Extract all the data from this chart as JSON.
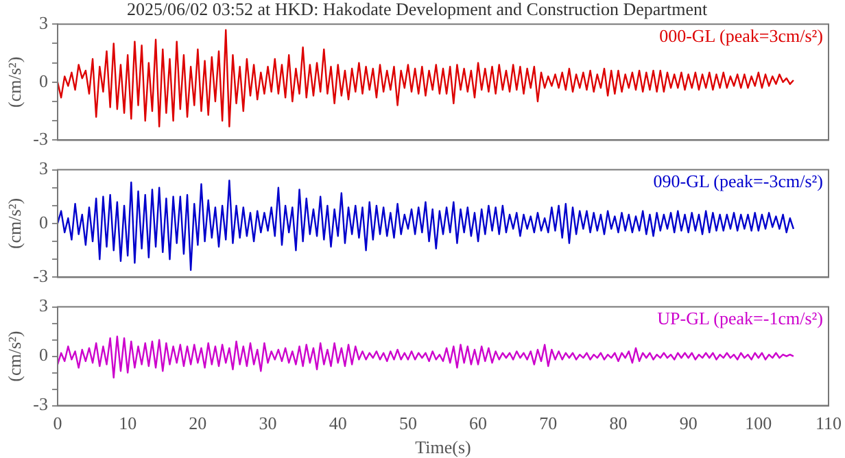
{
  "chart_data": [
    {
      "type": "line",
      "title": "2025/06/02 03:52 at HKD: Hakodate Development and Construction Department",
      "ylabel": "(cm/s²)",
      "marker": "none",
      "tick_labels": "y",
      "legend": false,
      "x": [
        0,
        0.5,
        1,
        1.5,
        2,
        2.5,
        3,
        3.5,
        4,
        4.5,
        5,
        5.5,
        6,
        6.5,
        7,
        7.5,
        8,
        8.5,
        9,
        9.5,
        10,
        10.5,
        11,
        11.5,
        12,
        12.5,
        13,
        13.5,
        14,
        14.5,
        15,
        15.5,
        16,
        16.5,
        17,
        17.5,
        18,
        18.5,
        19,
        19.5,
        20,
        20.5,
        21,
        21.5,
        22,
        22.5,
        23,
        23.5,
        24,
        24.5,
        25,
        25.5,
        26,
        26.5,
        27,
        27.5,
        28,
        28.5,
        29,
        29.5,
        30,
        30.5,
        31,
        31.5,
        32,
        32.5,
        33,
        33.5,
        34,
        34.5,
        35,
        35.5,
        36,
        36.5,
        37,
        37.5,
        38,
        38.5,
        39,
        39.5,
        40,
        40.5,
        41,
        41.5,
        42,
        42.5,
        43,
        43.5,
        44,
        44.5,
        45,
        45.5,
        46,
        46.5,
        47,
        47.5,
        48,
        48.5,
        49,
        49.5,
        50,
        50.5,
        51,
        51.5,
        52,
        52.5,
        53,
        53.5,
        54,
        54.5,
        55,
        55.5,
        56,
        56.5,
        57,
        57.5,
        58,
        58.5,
        59,
        59.5,
        60,
        60.5,
        61,
        61.5,
        62,
        62.5,
        63,
        63.5,
        64,
        64.5,
        65,
        65.5,
        66,
        66.5,
        67,
        67.5,
        68,
        68.5,
        69,
        69.5,
        70,
        70.5,
        71,
        71.5,
        72,
        72.5,
        73,
        73.5,
        74,
        74.5,
        75,
        75.5,
        76,
        76.5,
        77,
        77.5,
        78,
        78.5,
        79,
        79.5,
        80,
        80.5,
        81,
        81.5,
        82,
        82.5,
        83,
        83.5,
        84,
        84.5,
        85,
        85.5,
        86,
        86.5,
        87,
        87.5,
        88,
        88.5,
        89,
        89.5,
        90,
        90.5,
        91,
        91.5,
        92,
        92.5,
        93,
        93.5,
        94,
        94.5,
        95,
        95.5,
        96,
        96.5,
        97,
        97.5,
        98,
        98.5,
        99,
        99.5,
        100,
        100.5,
        101,
        101.5,
        102,
        102.5,
        103,
        103.5,
        104,
        104.5,
        105
      ],
      "xlim": [
        0,
        110
      ],
      "xticks": [
        0,
        10,
        20,
        30,
        40,
        50,
        60,
        70,
        80,
        90,
        100,
        110
      ],
      "ylim": [
        -3,
        3
      ],
      "yticks": [
        -3,
        {
          "value": -2,
          "label": null
        },
        {
          "value": -1,
          "label": null
        },
        0,
        {
          "value": 1,
          "label": null
        },
        {
          "value": 2,
          "label": null
        },
        3
      ],
      "series": [
        {
          "name": "000-GL (peak=3cm/s²)",
          "color": "#dd0000",
          "values": [
            0,
            -0.8,
            0.3,
            -0.2,
            0.5,
            -0.4,
            0.9,
            0.2,
            0.6,
            -0.6,
            1.2,
            -1.8,
            0.8,
            -0.5,
            1.6,
            -1.3,
            2.0,
            -1.4,
            0.9,
            -1.6,
            1.4,
            -1.9,
            2.1,
            -1.2,
            1.9,
            -2.0,
            1.0,
            -1.5,
            2.2,
            -2.3,
            1.7,
            -1.6,
            1.2,
            -2.0,
            2.1,
            -1.4,
            1.4,
            -1.8,
            0.8,
            -1.2,
            1.7,
            -1.5,
            1.1,
            -1.7,
            1.3,
            -1.0,
            1.6,
            -2.0,
            2.7,
            -2.3,
            1.4,
            -1.1,
            0.8,
            -1.5,
            1.2,
            -0.7,
            0.9,
            -0.9,
            0.5,
            -0.6,
            0.8,
            -0.5,
            1.2,
            -0.6,
            0.9,
            -0.8,
            1.4,
            -1.0,
            0.7,
            -0.6,
            1.8,
            -0.8,
            0.9,
            -0.7,
            1.0,
            -0.5,
            1.7,
            -0.6,
            0.8,
            -1.1,
            0.9,
            -0.7,
            0.6,
            -0.9,
            0.7,
            -0.5,
            1.0,
            -0.6,
            0.8,
            -0.4,
            0.7,
            -0.8,
            0.9,
            -0.5,
            0.6,
            -0.4,
            0.8,
            -1.2,
            0.6,
            -0.3,
            0.9,
            -0.5,
            0.7,
            -0.6,
            0.8,
            -0.7,
            0.6,
            -0.4,
            0.9,
            -0.6,
            0.7,
            -0.6,
            0.8,
            -1.1,
            0.9,
            -0.4,
            0.7,
            -0.5,
            0.6,
            -0.8,
            1.0,
            -0.4,
            0.7,
            -0.5,
            0.8,
            -0.6,
            0.9,
            -0.4,
            0.6,
            -0.5,
            0.9,
            -0.4,
            0.8,
            -0.6,
            0.7,
            -0.3,
            0.8,
            -1.0,
            0.5,
            -0.3,
            0.3,
            -0.2,
            0.4,
            -0.3,
            0.5,
            -0.4,
            0.7,
            -0.5,
            0.4,
            -0.3,
            0.5,
            -0.4,
            0.6,
            -0.5,
            0.4,
            -0.3,
            0.7,
            -0.7,
            0.6,
            -0.6,
            0.6,
            -0.5,
            0.4,
            -0.3,
            0.5,
            -0.4,
            0.6,
            -0.5,
            0.5,
            -0.4,
            0.6,
            -0.5,
            0.6,
            -0.5,
            0.5,
            -0.3,
            0.4,
            -0.3,
            0.5,
            -0.4,
            0.4,
            -0.3,
            0.5,
            -0.4,
            0.4,
            -0.3,
            0.5,
            -0.4,
            0.4,
            -0.3,
            0.5,
            -0.3,
            0.3,
            -0.2,
            0.4,
            -0.3,
            0.4,
            -0.3,
            0.3,
            -0.2,
            0.5,
            -0.3,
            0.4,
            -0.2,
            0.3,
            -0.1,
            0.4,
            0,
            0.2,
            -0.1,
            0.1
          ]
        }
      ]
    },
    {
      "type": "line",
      "ylabel": "(cm/s²)",
      "marker": "none",
      "tick_labels": "y",
      "legend": false,
      "x": [
        0,
        0.5,
        1,
        1.5,
        2,
        2.5,
        3,
        3.5,
        4,
        4.5,
        5,
        5.5,
        6,
        6.5,
        7,
        7.5,
        8,
        8.5,
        9,
        9.5,
        10,
        10.5,
        11,
        11.5,
        12,
        12.5,
        13,
        13.5,
        14,
        14.5,
        15,
        15.5,
        16,
        16.5,
        17,
        17.5,
        18,
        18.5,
        19,
        19.5,
        20,
        20.5,
        21,
        21.5,
        22,
        22.5,
        23,
        23.5,
        24,
        24.5,
        25,
        25.5,
        26,
        26.5,
        27,
        27.5,
        28,
        28.5,
        29,
        29.5,
        30,
        30.5,
        31,
        31.5,
        32,
        32.5,
        33,
        33.5,
        34,
        34.5,
        35,
        35.5,
        36,
        36.5,
        37,
        37.5,
        38,
        38.5,
        39,
        39.5,
        40,
        40.5,
        41,
        41.5,
        42,
        42.5,
        43,
        43.5,
        44,
        44.5,
        45,
        45.5,
        46,
        46.5,
        47,
        47.5,
        48,
        48.5,
        49,
        49.5,
        50,
        50.5,
        51,
        51.5,
        52,
        52.5,
        53,
        53.5,
        54,
        54.5,
        55,
        55.5,
        56,
        56.5,
        57,
        57.5,
        58,
        58.5,
        59,
        59.5,
        60,
        60.5,
        61,
        61.5,
        62,
        62.5,
        63,
        63.5,
        64,
        64.5,
        65,
        65.5,
        66,
        66.5,
        67,
        67.5,
        68,
        68.5,
        69,
        69.5,
        70,
        70.5,
        71,
        71.5,
        72,
        72.5,
        73,
        73.5,
        74,
        74.5,
        75,
        75.5,
        76,
        76.5,
        77,
        77.5,
        78,
        78.5,
        79,
        79.5,
        80,
        80.5,
        81,
        81.5,
        82,
        82.5,
        83,
        83.5,
        84,
        84.5,
        85,
        85.5,
        86,
        86.5,
        87,
        87.5,
        88,
        88.5,
        89,
        89.5,
        90,
        90.5,
        91,
        91.5,
        92,
        92.5,
        93,
        93.5,
        94,
        94.5,
        95,
        95.5,
        96,
        96.5,
        97,
        97.5,
        98,
        98.5,
        99,
        99.5,
        100,
        100.5,
        101,
        101.5,
        102,
        102.5,
        103,
        103.5,
        104,
        104.5,
        105
      ],
      "xlim": [
        0,
        110
      ],
      "xticks": [
        0,
        10,
        20,
        30,
        40,
        50,
        60,
        70,
        80,
        90,
        100,
        110
      ],
      "ylim": [
        -3,
        3
      ],
      "yticks": [
        -3,
        {
          "value": -2,
          "label": null
        },
        {
          "value": -1,
          "label": null
        },
        0,
        {
          "value": 1,
          "label": null
        },
        {
          "value": 2,
          "label": null
        },
        3
      ],
      "series": [
        {
          "name": "090-GL (peak=-3cm/s²)",
          "color": "#0000cc",
          "values": [
            0,
            0.7,
            -0.5,
            0.3,
            -0.9,
            1.1,
            -0.6,
            0.5,
            -1.2,
            0.9,
            -1.0,
            1.4,
            -2.0,
            1.5,
            -1.3,
            1.6,
            -1.5,
            1.2,
            -2.1,
            1.0,
            -1.8,
            2.3,
            -2.2,
            1.8,
            -1.4,
            1.6,
            -1.9,
            1.9,
            -1.3,
            2.0,
            -1.6,
            1.4,
            -2.0,
            1.5,
            -1.1,
            1.5,
            -1.7,
            1.6,
            -2.6,
            1.1,
            -1.2,
            2.2,
            -1.0,
            1.3,
            -0.8,
            0.9,
            -1.3,
            1.0,
            -0.9,
            2.4,
            -1.1,
            1.0,
            -0.8,
            0.9,
            -0.7,
            0.6,
            -1.0,
            0.7,
            -0.5,
            0.6,
            -0.4,
            0.9,
            -0.7,
            2.0,
            -1.2,
            1.0,
            -0.5,
            0.9,
            -1.5,
            1.9,
            -1.0,
            1.4,
            -0.6,
            0.8,
            -0.7,
            1.5,
            -0.9,
            1.0,
            -1.3,
            0.8,
            -0.7,
            1.7,
            -1.1,
            0.9,
            -0.6,
            1.0,
            -0.8,
            0.9,
            -1.5,
            1.2,
            -0.9,
            1.0,
            -0.6,
            0.9,
            -0.7,
            0.6,
            -0.8,
            1.1,
            -0.6,
            0.5,
            -0.3,
            0.8,
            -0.6,
            0.9,
            -0.5,
            1.2,
            -1.0,
            0.8,
            -1.4,
            0.7,
            -0.6,
            0.9,
            -0.5,
            1.2,
            -1.1,
            0.8,
            -0.5,
            0.9,
            -0.7,
            0.6,
            -1.0,
            0.8,
            -0.6,
            1.0,
            -0.4,
            0.9,
            -0.6,
            1.0,
            -0.5,
            0.5,
            -0.3,
            0.6,
            -0.7,
            0.5,
            -0.3,
            0.4,
            -0.5,
            0.6,
            -0.4,
            0.3,
            -0.5,
            0.9,
            -0.4,
            1.0,
            -0.8,
            1.1,
            -1.1,
            0.9,
            -0.6,
            0.7,
            -0.3,
            0.7,
            -0.5,
            0.6,
            -0.4,
            0.5,
            -0.6,
            0.7,
            -0.3,
            0.4,
            -0.5,
            0.6,
            -0.4,
            0.5,
            -0.5,
            0.4,
            -0.4,
            0.7,
            -0.6,
            0.5,
            -0.7,
            0.6,
            -0.4,
            0.5,
            -0.3,
            0.6,
            -0.5,
            0.7,
            -0.4,
            0.5,
            -0.5,
            0.6,
            -0.4,
            0.5,
            -0.6,
            0.7,
            -0.5,
            0.6,
            -0.4,
            0.5,
            -0.4,
            0.5,
            -0.3,
            0.6,
            -0.4,
            0.5,
            -0.3,
            0.5,
            -0.4,
            0.6,
            -0.4,
            0.5,
            -0.3,
            0.6,
            -0.2,
            0.4,
            -0.3,
            0.5,
            -0.5,
            0.3,
            -0.3
          ]
        }
      ]
    },
    {
      "type": "line",
      "ylabel": "(cm/s²)",
      "xlabel": "Time(s)",
      "marker": "none",
      "legend": false,
      "x": [
        0,
        0.5,
        1,
        1.5,
        2,
        2.5,
        3,
        3.5,
        4,
        4.5,
        5,
        5.5,
        6,
        6.5,
        7,
        7.5,
        8,
        8.5,
        9,
        9.5,
        10,
        10.5,
        11,
        11.5,
        12,
        12.5,
        13,
        13.5,
        14,
        14.5,
        15,
        15.5,
        16,
        16.5,
        17,
        17.5,
        18,
        18.5,
        19,
        19.5,
        20,
        20.5,
        21,
        21.5,
        22,
        22.5,
        23,
        23.5,
        24,
        24.5,
        25,
        25.5,
        26,
        26.5,
        27,
        27.5,
        28,
        28.5,
        29,
        29.5,
        30,
        30.5,
        31,
        31.5,
        32,
        32.5,
        33,
        33.5,
        34,
        34.5,
        35,
        35.5,
        36,
        36.5,
        37,
        37.5,
        38,
        38.5,
        39,
        39.5,
        40,
        40.5,
        41,
        41.5,
        42,
        42.5,
        43,
        43.5,
        44,
        44.5,
        45,
        45.5,
        46,
        46.5,
        47,
        47.5,
        48,
        48.5,
        49,
        49.5,
        50,
        50.5,
        51,
        51.5,
        52,
        52.5,
        53,
        53.5,
        54,
        54.5,
        55,
        55.5,
        56,
        56.5,
        57,
        57.5,
        58,
        58.5,
        59,
        59.5,
        60,
        60.5,
        61,
        61.5,
        62,
        62.5,
        63,
        63.5,
        64,
        64.5,
        65,
        65.5,
        66,
        66.5,
        67,
        67.5,
        68,
        68.5,
        69,
        69.5,
        70,
        70.5,
        71,
        71.5,
        72,
        72.5,
        73,
        73.5,
        74,
        74.5,
        75,
        75.5,
        76,
        76.5,
        77,
        77.5,
        78,
        78.5,
        79,
        79.5,
        80,
        80.5,
        81,
        81.5,
        82,
        82.5,
        83,
        83.5,
        84,
        84.5,
        85,
        85.5,
        86,
        86.5,
        87,
        87.5,
        88,
        88.5,
        89,
        89.5,
        90,
        90.5,
        91,
        91.5,
        92,
        92.5,
        93,
        93.5,
        94,
        94.5,
        95,
        95.5,
        96,
        96.5,
        97,
        97.5,
        98,
        98.5,
        99,
        99.5,
        100,
        100.5,
        101,
        101.5,
        102,
        102.5,
        103,
        103.5,
        104,
        104.5,
        105
      ],
      "xlim": [
        0,
        110
      ],
      "xticks": [
        0,
        10,
        20,
        30,
        40,
        50,
        60,
        70,
        80,
        90,
        100,
        110
      ],
      "ylim": [
        -3,
        3
      ],
      "yticks": [
        -3,
        {
          "value": -2,
          "label": null
        },
        {
          "value": -1,
          "label": null
        },
        0,
        {
          "value": 1,
          "label": null
        },
        {
          "value": 2,
          "label": null
        },
        3
      ],
      "series": [
        {
          "name": "UP-GL (peak=-1cm/s²)",
          "color": "#cc00cc",
          "values": [
            -0.5,
            0.2,
            -0.3,
            0.6,
            -0.2,
            0.3,
            -0.7,
            0.4,
            -0.3,
            0.5,
            -0.4,
            0.8,
            -0.6,
            0.6,
            -0.5,
            1.1,
            -1.3,
            1.2,
            -0.9,
            1.1,
            -1.0,
            0.9,
            -0.7,
            0.6,
            -0.5,
            0.8,
            -0.6,
            0.9,
            -0.7,
            1.0,
            -0.9,
            0.8,
            -0.5,
            0.6,
            -0.4,
            0.7,
            -0.6,
            0.6,
            -0.5,
            0.7,
            -0.4,
            0.5,
            -0.7,
            0.8,
            -0.5,
            0.6,
            -0.6,
            0.7,
            -0.4,
            0.5,
            -0.8,
            0.9,
            -0.5,
            0.6,
            -0.6,
            0.8,
            -0.5,
            0.4,
            -0.9,
            0.8,
            -0.4,
            0.3,
            -0.2,
            0.4,
            -0.3,
            0.5,
            -0.4,
            0.3,
            -0.5,
            0.6,
            -0.6,
            0.7,
            -0.4,
            0.5,
            -0.8,
            0.8,
            -0.5,
            0.4,
            -0.6,
            0.8,
            -0.4,
            0.5,
            -0.6,
            0.7,
            -0.5,
            0.6,
            -0.2,
            0.3,
            -0.2,
            0.2,
            -0.1,
            0.3,
            -0.2,
            0.2,
            -0.3,
            0.3,
            -0.2,
            0.4,
            -0.2,
            0.2,
            -0.2,
            0.3,
            -0.2,
            0.2,
            -0.1,
            0.2,
            -0.3,
            0.3,
            -0.2,
            0.1,
            -0.3,
            0.5,
            -0.4,
            0.6,
            -0.7,
            0.7,
            -0.4,
            0.6,
            -0.5,
            0.4,
            -0.5,
            0.6,
            -0.3,
            0.5,
            -0.4,
            0.3,
            -0.2,
            0.2,
            -0.1,
            0.2,
            -0.2,
            0.3,
            -0.1,
            0.2,
            -0.2,
            0.3,
            -0.5,
            0.4,
            -0.3,
            0.7,
            -0.6,
            0.4,
            -0.2,
            0.3,
            -0.2,
            0.2,
            -0.1,
            0.2,
            -0.2,
            0.1,
            -0.1,
            0.2,
            -0.2,
            0.1,
            -0.1,
            0.2,
            -0.2,
            0.1,
            -0.1,
            0.2,
            -0.3,
            0.2,
            -0.1,
            0.3,
            -0.4,
            0.5,
            -0.3,
            0.2,
            -0.1,
            0.2,
            -0.2,
            0.1,
            -0.1,
            0.2,
            -0.1,
            0.1,
            -0.2,
            0.2,
            -0.1,
            0.2,
            -0.1,
            0.2,
            -0.2,
            0.1,
            -0.1,
            0.2,
            -0.1,
            0.2,
            -0.2,
            0.1,
            -0.1,
            0.2,
            -0.1,
            0.1,
            -0.2,
            0.2,
            -0.1,
            0.1,
            -0.2,
            0.2,
            -0.1,
            0.2,
            -0.2,
            0.1,
            -0.1,
            0.2,
            -0.1,
            0.1,
            0,
            0.1,
            0
          ]
        }
      ]
    }
  ]
}
